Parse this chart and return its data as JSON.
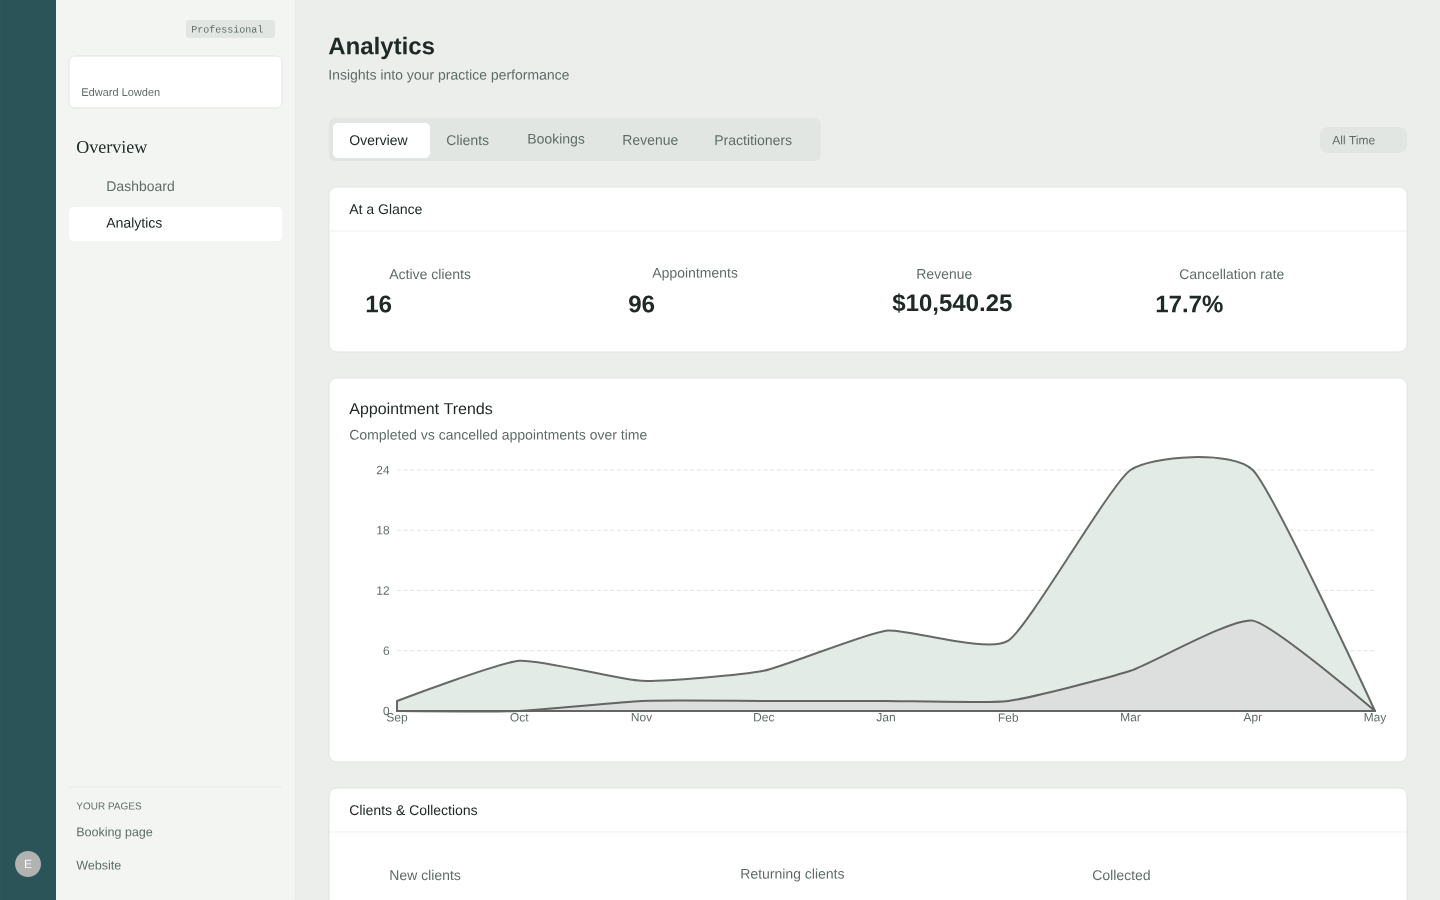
{
  "chart_data": {
    "type": "area",
    "title": "Appointment Trends",
    "subtitle": "Completed vs cancelled appointments over time",
    "categories": [
      "Sep",
      "Oct",
      "Nov",
      "Dec",
      "Jan",
      "Feb",
      "Mar",
      "Apr",
      "May"
    ],
    "series": [
      {
        "color": "#e3ebe6",
        "values": [
          1,
          5,
          3,
          4,
          8,
          7,
          24,
          24,
          0
        ]
      },
      {
        "color": "#dcdfdd",
        "values": [
          0,
          0,
          1,
          1,
          1,
          1,
          4,
          9,
          0
        ]
      }
    ],
    "ylim": [
      0,
      24
    ],
    "yticks": [
      0,
      6,
      12,
      18,
      24
    ],
    "grid": "y",
    "annotations": [
      "Analytics",
      "Insights into your practice performance",
      "Overview",
      "Clients",
      "Bookings",
      "Revenue",
      "Practitioners",
      "All Time",
      "At a Glance",
      "Active clients",
      "16",
      "Appointments",
      "96",
      "Revenue",
      "$10,540.25",
      "Cancellation rate",
      "17.7%",
      "Clients & Collections",
      "New clients",
      "Returning clients",
      "Collected",
      "Professional",
      "Edward Lowden",
      "Overview",
      "Dashboard",
      "Analytics",
      "YOUR PAGES",
      "Booking page",
      "Website",
      "E"
    ]
  }
}
